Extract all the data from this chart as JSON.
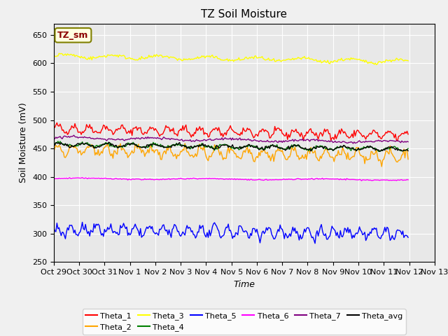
{
  "title": "TZ Soil Moisture",
  "xlabel": "Time",
  "ylabel": "Soil Moisture (mV)",
  "ylim": [
    250,
    670
  ],
  "yticks": [
    250,
    300,
    350,
    400,
    450,
    500,
    550,
    600,
    650
  ],
  "background_color": "#e8e8e8",
  "legend_label": "TZ_sm",
  "series": [
    {
      "name": "Theta_1",
      "color": "red",
      "base": 485,
      "drift": -12,
      "amp": 6,
      "freq": 1.5
    },
    {
      "name": "Theta_2",
      "color": "orange",
      "base": 448,
      "drift": -12,
      "amp": 8,
      "freq": 1.5
    },
    {
      "name": "Theta_3",
      "color": "yellow",
      "base": 613,
      "drift": -10,
      "amp": 3,
      "freq": 0.5
    },
    {
      "name": "Theta_4",
      "color": "green",
      "base": 457,
      "drift": -8,
      "amp": 3,
      "freq": 1.0
    },
    {
      "name": "Theta_5",
      "color": "blue",
      "base": 307,
      "drift": -8,
      "amp": 8,
      "freq": 1.8
    },
    {
      "name": "Theta_6",
      "color": "magenta",
      "base": 397,
      "drift": -2,
      "amp": 1,
      "freq": 0.2
    },
    {
      "name": "Theta_7",
      "color": "purple",
      "base": 469,
      "drift": -8,
      "amp": 2,
      "freq": 0.3
    },
    {
      "name": "Theta_avg",
      "color": "black",
      "base": 457,
      "drift": -8,
      "amp": 3,
      "freq": 1.0
    }
  ],
  "n_points": 336,
  "date_labels": [
    "Oct 29",
    "Oct 30",
    "Oct 31",
    "Nov 1",
    "Nov 2",
    "Nov 3",
    "Nov 4",
    "Nov 5",
    "Nov 6",
    "Nov 7",
    "Nov 8",
    "Nov 9",
    "Nov 10",
    "Nov 11",
    "Nov 12",
    "Nov 13"
  ],
  "date_ticks": [
    0,
    24,
    48,
    72,
    96,
    120,
    144,
    168,
    192,
    216,
    240,
    264,
    288,
    312,
    336,
    360
  ]
}
